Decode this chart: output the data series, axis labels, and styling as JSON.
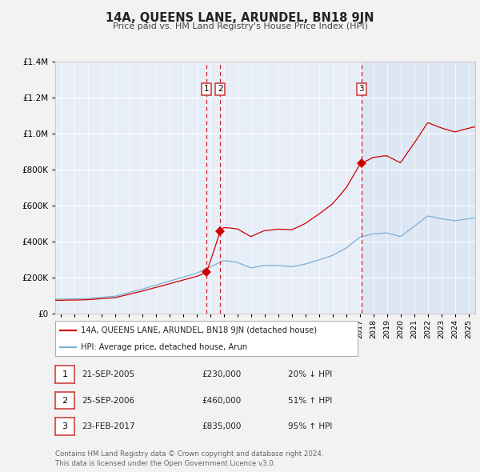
{
  "title": "14A, QUEENS LANE, ARUNDEL, BN18 9JN",
  "subtitle": "Price paid vs. HM Land Registry's House Price Index (HPI)",
  "outer_bg": "#f2f2f2",
  "plot_bg": "#e8eef8",
  "grid_color": "#ffffff",
  "red_line_color": "#cc0000",
  "blue_line_color": "#7bafd4",
  "ylim": [
    0,
    1400000
  ],
  "yticks": [
    0,
    200000,
    400000,
    600000,
    800000,
    1000000,
    1200000,
    1400000
  ],
  "xlim_start": 1994.6,
  "xlim_end": 2025.5,
  "transactions": [
    {
      "num": 1,
      "date_str": "21-SEP-2005",
      "year": 2005.72,
      "price": 230000,
      "pct": "20%",
      "direction": "↓"
    },
    {
      "num": 2,
      "date_str": "25-SEP-2006",
      "year": 2006.73,
      "price": 460000,
      "pct": "51%",
      "direction": "↑"
    },
    {
      "num": 3,
      "date_str": "23-FEB-2017",
      "year": 2017.14,
      "price": 835000,
      "pct": "95%",
      "direction": "↑"
    }
  ],
  "legend_label_red": "14A, QUEENS LANE, ARUNDEL, BN18 9JN (detached house)",
  "legend_label_blue": "HPI: Average price, detached house, Arun",
  "footer_line1": "Contains HM Land Registry data © Crown copyright and database right 2024.",
  "footer_line2": "This data is licensed under the Open Government Licence v3.0."
}
